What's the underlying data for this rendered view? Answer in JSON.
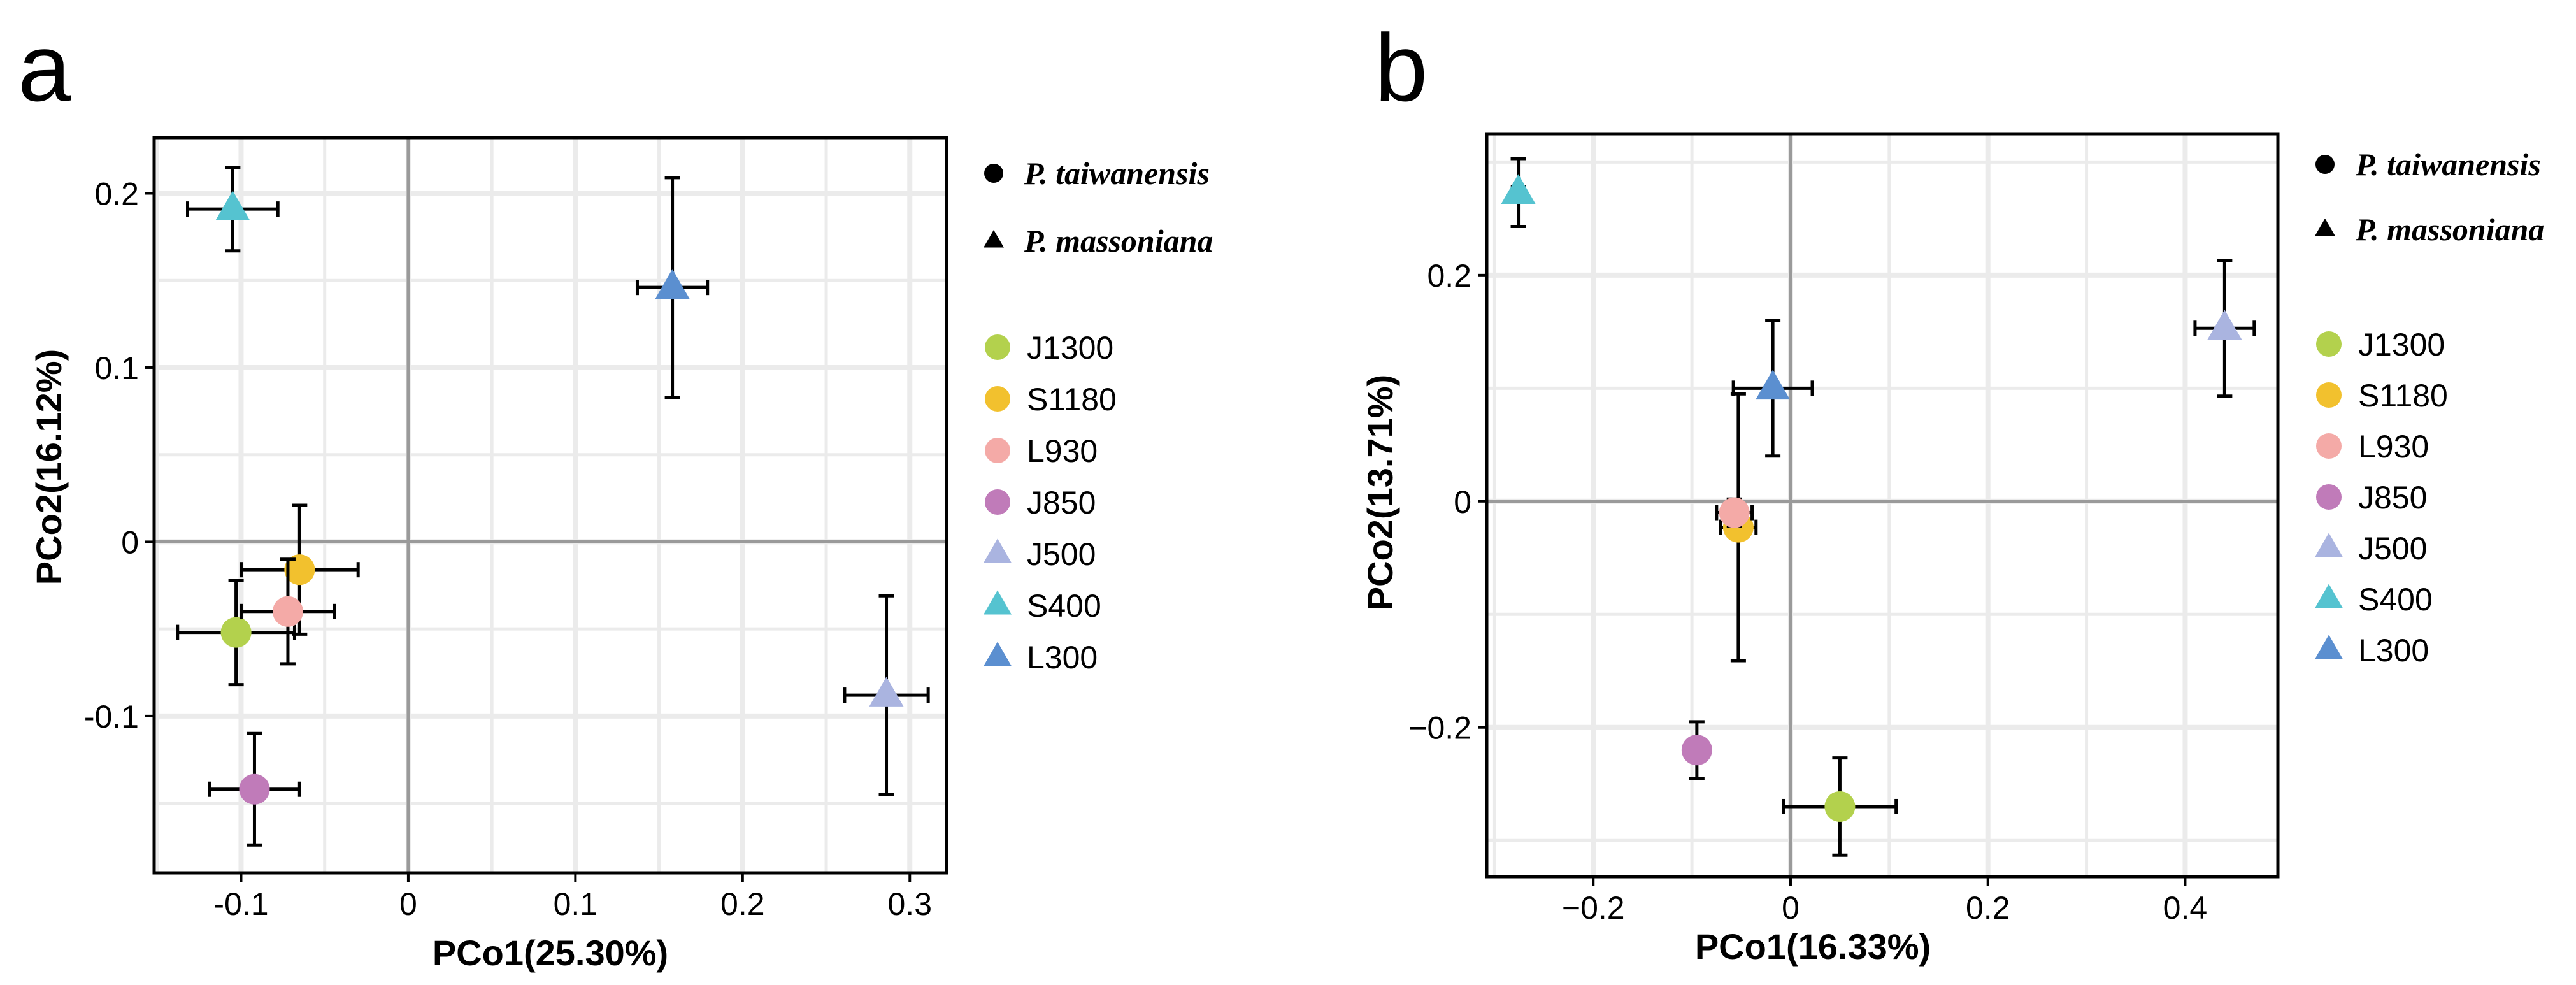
{
  "chart_data": [
    {
      "panel_label": "a",
      "type": "scatter",
      "xlabel": "PCo1(25.30%)",
      "ylabel": "PCo2(16.12%)",
      "xlim": [
        -0.152,
        0.322
      ],
      "ylim": [
        -0.19,
        0.232
      ],
      "xticks": [
        -0.1,
        0,
        0.1,
        0.2,
        0.3
      ],
      "xtick_labels": [
        "-0.1",
        "0",
        "0.1",
        "0.2",
        "0.3"
      ],
      "yticks": [
        -0.1,
        0,
        0.1,
        0.2
      ],
      "ytick_labels": [
        "-0.1",
        "0",
        "0.1",
        "0.2"
      ],
      "grid": true,
      "zero_lines": true,
      "legend_species": [
        {
          "label": "P. taiwanensis",
          "shape": "circle"
        },
        {
          "label": "P. massoniana",
          "shape": "triangle"
        }
      ],
      "legend_sites": [
        {
          "label": "J1300",
          "color": "#b3d14d",
          "shape": "circle"
        },
        {
          "label": "S1180",
          "color": "#f2c12e",
          "shape": "circle"
        },
        {
          "label": "L930",
          "color": "#f4aaa7",
          "shape": "circle"
        },
        {
          "label": "J850",
          "color": "#c07bb9",
          "shape": "circle"
        },
        {
          "label": "J500",
          "color": "#aab4e0",
          "shape": "triangle"
        },
        {
          "label": "S400",
          "color": "#55c3d0",
          "shape": "triangle"
        },
        {
          "label": "L300",
          "color": "#5b8fd0",
          "shape": "triangle"
        }
      ],
      "points": [
        {
          "site": "J1300",
          "x": -0.103,
          "y": -0.052,
          "xerr": 0.035,
          "yerr": 0.03
        },
        {
          "site": "S1180",
          "x": -0.065,
          "y": -0.016,
          "xerr": 0.035,
          "yerr": 0.037
        },
        {
          "site": "L930",
          "x": -0.072,
          "y": -0.04,
          "xerr": 0.028,
          "yerr": 0.03
        },
        {
          "site": "J850",
          "x": -0.092,
          "y": -0.142,
          "xerr": 0.027,
          "yerr": 0.032
        },
        {
          "site": "J500",
          "x": 0.286,
          "y": -0.088,
          "xerr": 0.025,
          "yerr": 0.057
        },
        {
          "site": "S400",
          "x": -0.105,
          "y": 0.191,
          "xerr": 0.027,
          "yerr": 0.024
        },
        {
          "site": "L300",
          "x": 0.158,
          "y": 0.146,
          "xerr": 0.021,
          "yerr": 0.063
        }
      ]
    },
    {
      "panel_label": "b",
      "type": "scatter",
      "xlabel": "PCo1(16.33%)",
      "ylabel": "PCo2(13.71%)",
      "xlim": [
        -0.308,
        0.494
      ],
      "ylim": [
        -0.332,
        0.325
      ],
      "xticks": [
        -0.2,
        0,
        0.2,
        0.4
      ],
      "xtick_labels": [
        "−0.2",
        "0",
        "0.2",
        "0.4"
      ],
      "yticks": [
        -0.2,
        0,
        0.2
      ],
      "ytick_labels": [
        "−0.2",
        "0",
        "0.2"
      ],
      "grid": true,
      "zero_lines": true,
      "legend_species": [
        {
          "label": "P. taiwanensis",
          "shape": "circle"
        },
        {
          "label": "P. massoniana",
          "shape": "triangle"
        }
      ],
      "legend_sites": [
        {
          "label": "J1300",
          "color": "#b3d14d",
          "shape": "circle"
        },
        {
          "label": "S1180",
          "color": "#f2c12e",
          "shape": "circle"
        },
        {
          "label": "L930",
          "color": "#f4aaa7",
          "shape": "circle"
        },
        {
          "label": "J850",
          "color": "#c07bb9",
          "shape": "circle"
        },
        {
          "label": "J500",
          "color": "#aab4e0",
          "shape": "triangle"
        },
        {
          "label": "S400",
          "color": "#55c3d0",
          "shape": "triangle"
        },
        {
          "label": "L300",
          "color": "#5b8fd0",
          "shape": "triangle"
        }
      ],
      "points": [
        {
          "site": "J1300",
          "x": 0.05,
          "y": -0.27,
          "xerr": 0.057,
          "yerr": 0.043
        },
        {
          "site": "S1180",
          "x": -0.053,
          "y": -0.023,
          "xerr": 0.018,
          "yerr": 0.118
        },
        {
          "site": "L930",
          "x": -0.057,
          "y": -0.01,
          "xerr": 0.018,
          "yerr": 0.012
        },
        {
          "site": "J850",
          "x": -0.095,
          "y": -0.22,
          "xerr": 0.006,
          "yerr": 0.025
        },
        {
          "site": "J500",
          "x": 0.44,
          "y": 0.153,
          "xerr": 0.03,
          "yerr": 0.06
        },
        {
          "site": "S400",
          "x": -0.276,
          "y": 0.273,
          "xerr": 0.006,
          "yerr": 0.03
        },
        {
          "site": "L300",
          "x": -0.018,
          "y": 0.1,
          "xerr": 0.04,
          "yerr": 0.06
        }
      ]
    }
  ]
}
